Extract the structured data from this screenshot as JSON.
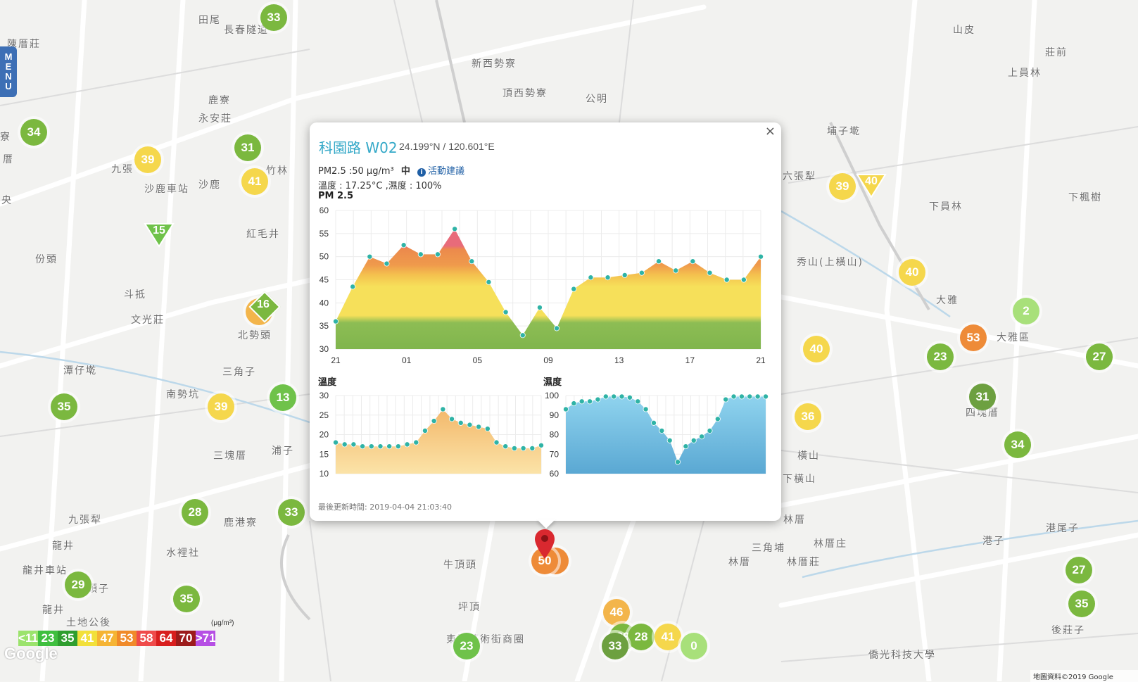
{
  "menu": {
    "label": "MENU",
    "letters": [
      "M",
      "E",
      "N",
      "U"
    ]
  },
  "map_labels": [
    {
      "text": "田尾",
      "x": 282,
      "y": 18
    },
    {
      "text": "長春隧道",
      "x": 318,
      "y": 32
    },
    {
      "text": "陳厝莊",
      "x": 10,
      "y": 52
    },
    {
      "text": "山皮",
      "x": 1354,
      "y": 32
    },
    {
      "text": "莊前",
      "x": 1485,
      "y": 64
    },
    {
      "text": "新西勢寮",
      "x": 670,
      "y": 80
    },
    {
      "text": "上員林",
      "x": 1432,
      "y": 93
    },
    {
      "text": "頂西勢寮",
      "x": 714,
      "y": 122
    },
    {
      "text": "公明",
      "x": 832,
      "y": 130
    },
    {
      "text": "鹿寮",
      "x": 296,
      "y": 132
    },
    {
      "text": "永安莊",
      "x": 282,
      "y": 158
    },
    {
      "text": "埔子墘",
      "x": 1175,
      "y": 176
    },
    {
      "text": "寮",
      "x": 0,
      "y": 184
    },
    {
      "text": "九張",
      "x": 158,
      "y": 230
    },
    {
      "text": "竹林",
      "x": 378,
      "y": 232
    },
    {
      "text": "厝",
      "x": 4,
      "y": 216
    },
    {
      "text": "沙鹿",
      "x": 282,
      "y": 252
    },
    {
      "text": "沙鹿車站",
      "x": 205,
      "y": 258
    },
    {
      "text": "六張犁",
      "x": 1112,
      "y": 240
    },
    {
      "text": "下楓樹",
      "x": 1518,
      "y": 270
    },
    {
      "text": "央",
      "x": 2,
      "y": 274
    },
    {
      "text": "下員林",
      "x": 1320,
      "y": 283
    },
    {
      "text": "紅毛井",
      "x": 350,
      "y": 322
    },
    {
      "text": "份頭",
      "x": 50,
      "y": 358
    },
    {
      "text": "秀山(上橫山)",
      "x": 1132,
      "y": 362
    },
    {
      "text": "斗抵",
      "x": 176,
      "y": 408
    },
    {
      "text": "大雅",
      "x": 1330,
      "y": 416
    },
    {
      "text": "文光莊",
      "x": 186,
      "y": 444
    },
    {
      "text": "北勢頭",
      "x": 338,
      "y": 466
    },
    {
      "text": "大雅區",
      "x": 1416,
      "y": 469
    },
    {
      "text": "潭仔墘",
      "x": 90,
      "y": 516
    },
    {
      "text": "三角子",
      "x": 316,
      "y": 518
    },
    {
      "text": "南勢坑",
      "x": 236,
      "y": 550
    },
    {
      "text": "四塊厝",
      "x": 1372,
      "y": 576
    },
    {
      "text": "浦子",
      "x": 386,
      "y": 630
    },
    {
      "text": "三塊厝",
      "x": 303,
      "y": 637
    },
    {
      "text": "橫山",
      "x": 1133,
      "y": 637
    },
    {
      "text": "下橫山",
      "x": 1112,
      "y": 670
    },
    {
      "text": "九張犁",
      "x": 97,
      "y": 728
    },
    {
      "text": "鹿港寮",
      "x": 318,
      "y": 732
    },
    {
      "text": "林厝",
      "x": 1113,
      "y": 728
    },
    {
      "text": "港尾子",
      "x": 1486,
      "y": 740
    },
    {
      "text": "龍井",
      "x": 74,
      "y": 765
    },
    {
      "text": "水裡社",
      "x": 236,
      "y": 775
    },
    {
      "text": "三角埔",
      "x": 1068,
      "y": 768
    },
    {
      "text": "林厝庄",
      "x": 1156,
      "y": 762
    },
    {
      "text": "港子",
      "x": 1396,
      "y": 758
    },
    {
      "text": "牛頂頭",
      "x": 630,
      "y": 792
    },
    {
      "text": "林厝",
      "x": 1035,
      "y": 788
    },
    {
      "text": "林厝莊",
      "x": 1118,
      "y": 788
    },
    {
      "text": "龍井車站",
      "x": 32,
      "y": 800
    },
    {
      "text": "頭子",
      "x": 124,
      "y": 826
    },
    {
      "text": "坪頂",
      "x": 651,
      "y": 852
    },
    {
      "text": "龍井",
      "x": 60,
      "y": 856
    },
    {
      "text": "土地公後",
      "x": 94,
      "y": 874
    },
    {
      "text": "東海藝術街商圈",
      "x": 634,
      "y": 898
    },
    {
      "text": "後莊子",
      "x": 1494,
      "y": 885
    },
    {
      "text": "僑光科技大學",
      "x": 1234,
      "y": 920
    }
  ],
  "markers": [
    {
      "value": "33",
      "x": 389,
      "y": 25,
      "color": "#7bb83f"
    },
    {
      "value": "34",
      "x": 48,
      "y": 188,
      "color": "#7bb83f"
    },
    {
      "value": "31",
      "x": 352,
      "y": 210,
      "color": "#7bb83f"
    },
    {
      "value": "39",
      "x": 210,
      "y": 227,
      "color": "#f5d74c"
    },
    {
      "value": "41",
      "x": 362,
      "y": 258,
      "color": "#f5d74c"
    },
    {
      "value": "39",
      "x": 1197,
      "y": 265,
      "color": "#f5d74c"
    },
    {
      "value": "40",
      "x": 1296,
      "y": 387,
      "color": "#f5d74c"
    },
    {
      "value": "2",
      "x": 1458,
      "y": 442,
      "color": "#a8e07a"
    },
    {
      "value": "53",
      "x": 1383,
      "y": 480,
      "color": "#ee8b38"
    },
    {
      "value": "40",
      "x": 1160,
      "y": 496,
      "color": "#f5d74c"
    },
    {
      "value": "23",
      "x": 1336,
      "y": 507,
      "color": "#7bb83f"
    },
    {
      "value": "27",
      "x": 1562,
      "y": 507,
      "color": "#7bb83f"
    },
    {
      "value": "13",
      "x": 402,
      "y": 565,
      "color": "#6fc24a"
    },
    {
      "value": "35",
      "x": 91,
      "y": 578,
      "color": "#7bb83f"
    },
    {
      "value": "39",
      "x": 314,
      "y": 578,
      "color": "#f5d74c"
    },
    {
      "value": "31",
      "x": 1396,
      "y": 564,
      "color": "#6da040"
    },
    {
      "value": "36",
      "x": 1148,
      "y": 592,
      "color": "#f5d74c"
    },
    {
      "value": "34",
      "x": 1446,
      "y": 632,
      "color": "#7bb83f"
    },
    {
      "value": "28",
      "x": 277,
      "y": 728,
      "color": "#7bb83f"
    },
    {
      "value": "33",
      "x": 414,
      "y": 728,
      "color": "#7bb83f"
    },
    {
      "value": "27",
      "x": 1533,
      "y": 810,
      "color": "#7bb83f"
    },
    {
      "value": "29",
      "x": 111,
      "y": 831,
      "color": "#7bb83f"
    },
    {
      "value": "35",
      "x": 265,
      "y": 851,
      "color": "#7bb83f"
    },
    {
      "value": "35",
      "x": 1537,
      "y": 858,
      "color": "#7bb83f"
    },
    {
      "value": "46",
      "x": 876,
      "y": 870,
      "color": "#f3b54b"
    },
    {
      "value": "39",
      "x": 885,
      "y": 905,
      "color": "#7bb83f"
    },
    {
      "value": "28",
      "x": 911,
      "y": 905,
      "color": "#7bb83f"
    },
    {
      "value": "41",
      "x": 949,
      "y": 905,
      "color": "#f5d74c"
    },
    {
      "value": "0",
      "x": 986,
      "y": 918,
      "color": "#a8e07a"
    },
    {
      "value": "33",
      "x": 874,
      "y": 918,
      "color": "#6da040"
    },
    {
      "value": "23",
      "x": 663,
      "y": 918,
      "color": "#6fc24a"
    },
    {
      "value": "",
      "x": 789,
      "y": 797,
      "color": "#ee8b38"
    },
    {
      "value": "50",
      "x": 774,
      "y": 797,
      "color": "#ee8b38"
    },
    {
      "value": "",
      "x": 368,
      "y": 443,
      "color": "#f3b54b"
    }
  ],
  "triangles": [
    {
      "value": "15",
      "x": 226,
      "y": 336,
      "color": "#6fc24a"
    },
    {
      "value": "40",
      "x": 1238,
      "y": 266,
      "color": "#f5d74c"
    }
  ],
  "diamonds": [
    {
      "value": "16",
      "x": 374,
      "y": 434
    }
  ],
  "popup": {
    "station_name": "科園路 W02",
    "coord": "24.199°N / 120.601°E",
    "pm_text": "PM2.5 :50 μg/m³",
    "pm_level": "中",
    "info_icon": "i",
    "advice_link": "活動建議",
    "temp_humidity_text": "溫度 : 17.25°C ,濕度 : 100%",
    "close_label": "×",
    "updated_label": "最後更新時間:",
    "updated_time": "2019-04-04 21:03:40",
    "pm_chart_title": "PM 2.5",
    "temp_chart_title": "溫度",
    "humidity_chart_title": "濕度"
  },
  "legend": {
    "unit": "(μg/m³)",
    "items": [
      {
        "label": "<11",
        "color": "#9be36c"
      },
      {
        "label": "23",
        "color": "#3fbf3f"
      },
      {
        "label": "35",
        "color": "#2f9e2f"
      },
      {
        "label": "41",
        "color": "#f2e03a"
      },
      {
        "label": "47",
        "color": "#f5b434"
      },
      {
        "label": "53",
        "color": "#f08a2a"
      },
      {
        "label": "58",
        "color": "#ef4b4b"
      },
      {
        "label": "64",
        "color": "#d81e1e"
      },
      {
        "label": "70",
        "color": "#9c1b1b"
      },
      {
        "label": ">71",
        "color": "#b64fe4"
      }
    ]
  },
  "google_logo": "Google",
  "attribution": "地圖資料©2019 Google",
  "chart_data": [
    {
      "type": "area",
      "title": "PM 2.5",
      "xlabel": "",
      "ylabel": "",
      "x_tick_labels": [
        "21",
        "01",
        "05",
        "09",
        "13",
        "17",
        "21"
      ],
      "ylim": [
        30,
        60
      ],
      "y_ticks": [
        30,
        35,
        40,
        45,
        50,
        55,
        60
      ],
      "grid": true,
      "values": [
        36,
        43.5,
        50,
        48.5,
        52.5,
        50.5,
        50.5,
        56,
        49,
        44.5,
        38,
        33,
        39,
        34.5,
        43,
        45.5,
        45.5,
        46,
        46.5,
        49,
        47,
        49,
        46.5,
        45,
        45,
        50
      ]
    },
    {
      "type": "area",
      "title": "溫度",
      "xlabel": "",
      "ylabel": "",
      "ylim": [
        10,
        30
      ],
      "y_ticks": [
        10,
        15,
        20,
        25,
        30
      ],
      "grid": true,
      "values": [
        18,
        17.5,
        17.5,
        17,
        17,
        17,
        17,
        17,
        17.5,
        18,
        21,
        23.5,
        26.5,
        24,
        23,
        22.5,
        22,
        21.5,
        18,
        17,
        16.5,
        16.5,
        16.5,
        17.25
      ]
    },
    {
      "type": "area",
      "title": "濕度",
      "xlabel": "",
      "ylabel": "",
      "ylim": [
        60,
        100
      ],
      "y_ticks": [
        60,
        70,
        80,
        90,
        100
      ],
      "grid": true,
      "values": [
        93,
        96,
        97,
        97,
        98,
        99.5,
        99.5,
        99.5,
        99,
        97,
        93,
        86,
        82,
        77,
        66,
        74,
        77,
        79,
        82,
        88,
        98,
        99.5,
        99.5,
        99.5,
        99.5,
        99.5
      ]
    }
  ]
}
